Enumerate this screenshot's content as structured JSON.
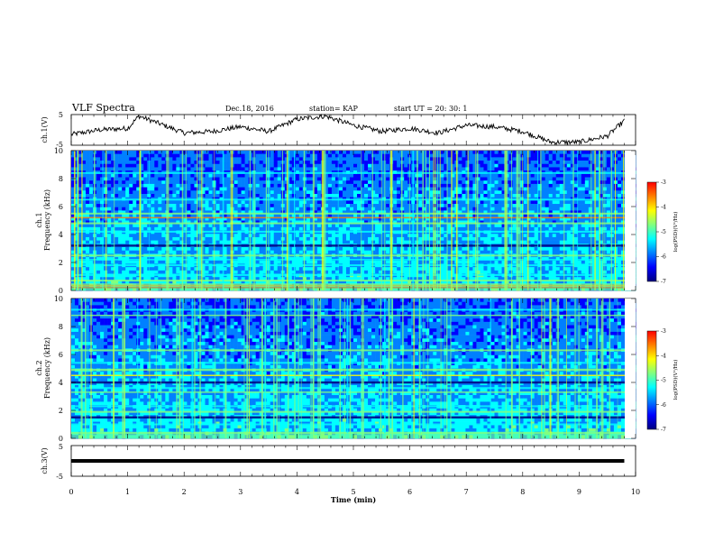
{
  "header": {
    "title": "VLF Spectra",
    "date": "Dec.18, 2016",
    "station": "station= KAP",
    "start": "start  UT =  20: 30: 1"
  },
  "colors": {
    "colormap": [
      "#00007f",
      "#0000ff",
      "#0080ff",
      "#00ffff",
      "#80ff80",
      "#ffff00",
      "#ff8000",
      "#ff0000",
      "#ffffff"
    ],
    "trace": "#000000"
  },
  "chart_data": [
    {
      "type": "line",
      "panel": "ch1-waveform",
      "ylabel": "ch.1(V)",
      "ylim": [
        -5,
        5
      ],
      "yticks": [
        "5",
        "-5"
      ],
      "xlim": [
        0,
        10
      ],
      "x": [
        0,
        0.5,
        1,
        1.2,
        1.5,
        2,
        2.5,
        3,
        3.5,
        4,
        4.5,
        5,
        5.5,
        6,
        6.5,
        7,
        7.5,
        8,
        8.5,
        9,
        9.5,
        9.8
      ],
      "y": [
        -1.5,
        0,
        0.5,
        4.5,
        2.5,
        -1,
        -0.5,
        1,
        -0.5,
        3.5,
        4.5,
        1.5,
        -0.5,
        0.5,
        -1,
        1.5,
        1,
        -0.5,
        -4,
        -4,
        -2,
        3
      ]
    },
    {
      "type": "heatmap",
      "panel": "ch1-spectrogram",
      "ylabel": "ch.1\nFrequency (kHz)",
      "ylabel_line1": "ch.1",
      "ylabel_line2": "Frequency (kHz)",
      "ylim": [
        0,
        10
      ],
      "yticks": [
        "0",
        "2",
        "4",
        "6",
        "8",
        "10"
      ],
      "colorbar": {
        "label": "log(PSD)(V²/Hz)",
        "range": [
          -7,
          -3
        ],
        "ticks": [
          "-3",
          "-4",
          "-5",
          "-6",
          "-7"
        ]
      }
    },
    {
      "type": "heatmap",
      "panel": "ch2-spectrogram",
      "ylabel_line1": "ch.2",
      "ylabel_line2": "Frequency (kHz)",
      "ylim": [
        0,
        10
      ],
      "yticks": [
        "0",
        "2",
        "4",
        "6",
        "8",
        "10"
      ],
      "colorbar": {
        "label": "log(PSD)(V²/Hz)",
        "range": [
          -7,
          -3
        ],
        "ticks": [
          "-3",
          "-4",
          "-5",
          "-6",
          "-7"
        ]
      }
    },
    {
      "type": "line",
      "panel": "ch3-waveform",
      "ylabel": "ch.3(V)",
      "ylim": [
        -5,
        5
      ],
      "yticks": [
        "5",
        "-5"
      ],
      "x": [
        0,
        9.8
      ],
      "y": [
        0,
        0
      ]
    }
  ],
  "xaxis": {
    "label": "Time (min)",
    "range": [
      0,
      10
    ],
    "ticks": [
      "0",
      "1",
      "2",
      "3",
      "4",
      "5",
      "6",
      "7",
      "8",
      "9",
      "10"
    ]
  }
}
